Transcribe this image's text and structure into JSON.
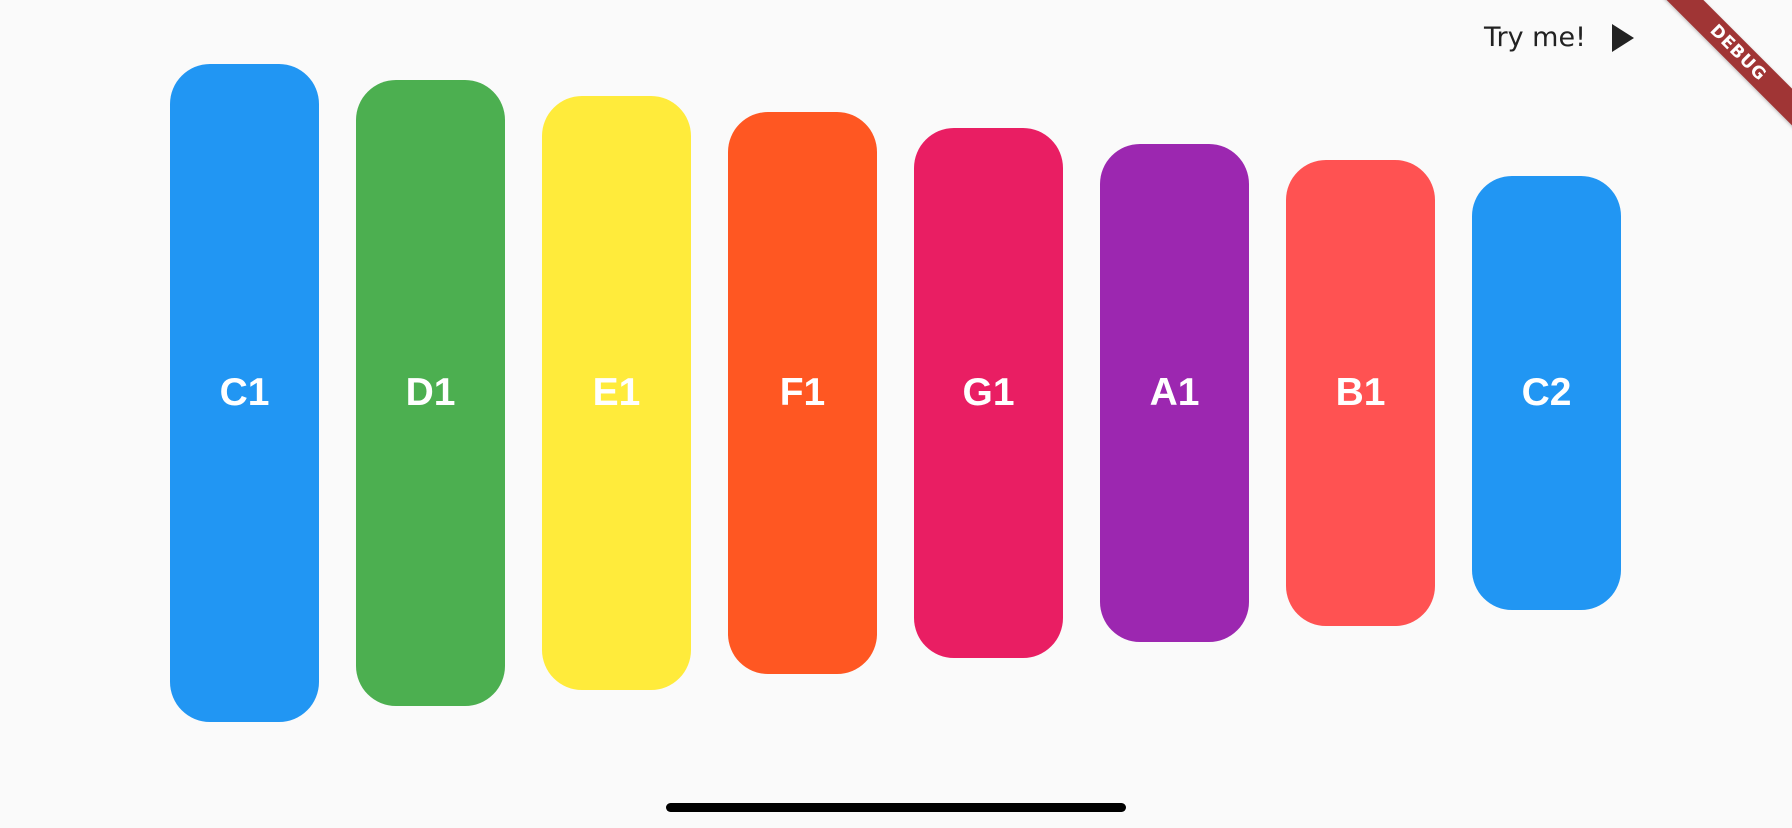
{
  "header": {
    "try_label": "Try me!",
    "play_icon": "play-icon"
  },
  "debug_banner": "DEBUG",
  "keys": [
    {
      "label": "C1",
      "color": "#2196F3"
    },
    {
      "label": "D1",
      "color": "#4CAF50"
    },
    {
      "label": "E1",
      "color": "#FFEB3B"
    },
    {
      "label": "F1",
      "color": "#FF5722"
    },
    {
      "label": "G1",
      "color": "#E91E63"
    },
    {
      "label": "A1",
      "color": "#9C27B0"
    },
    {
      "label": "B1",
      "color": "#FF5252"
    },
    {
      "label": "C2",
      "color": "#2196F3"
    }
  ]
}
